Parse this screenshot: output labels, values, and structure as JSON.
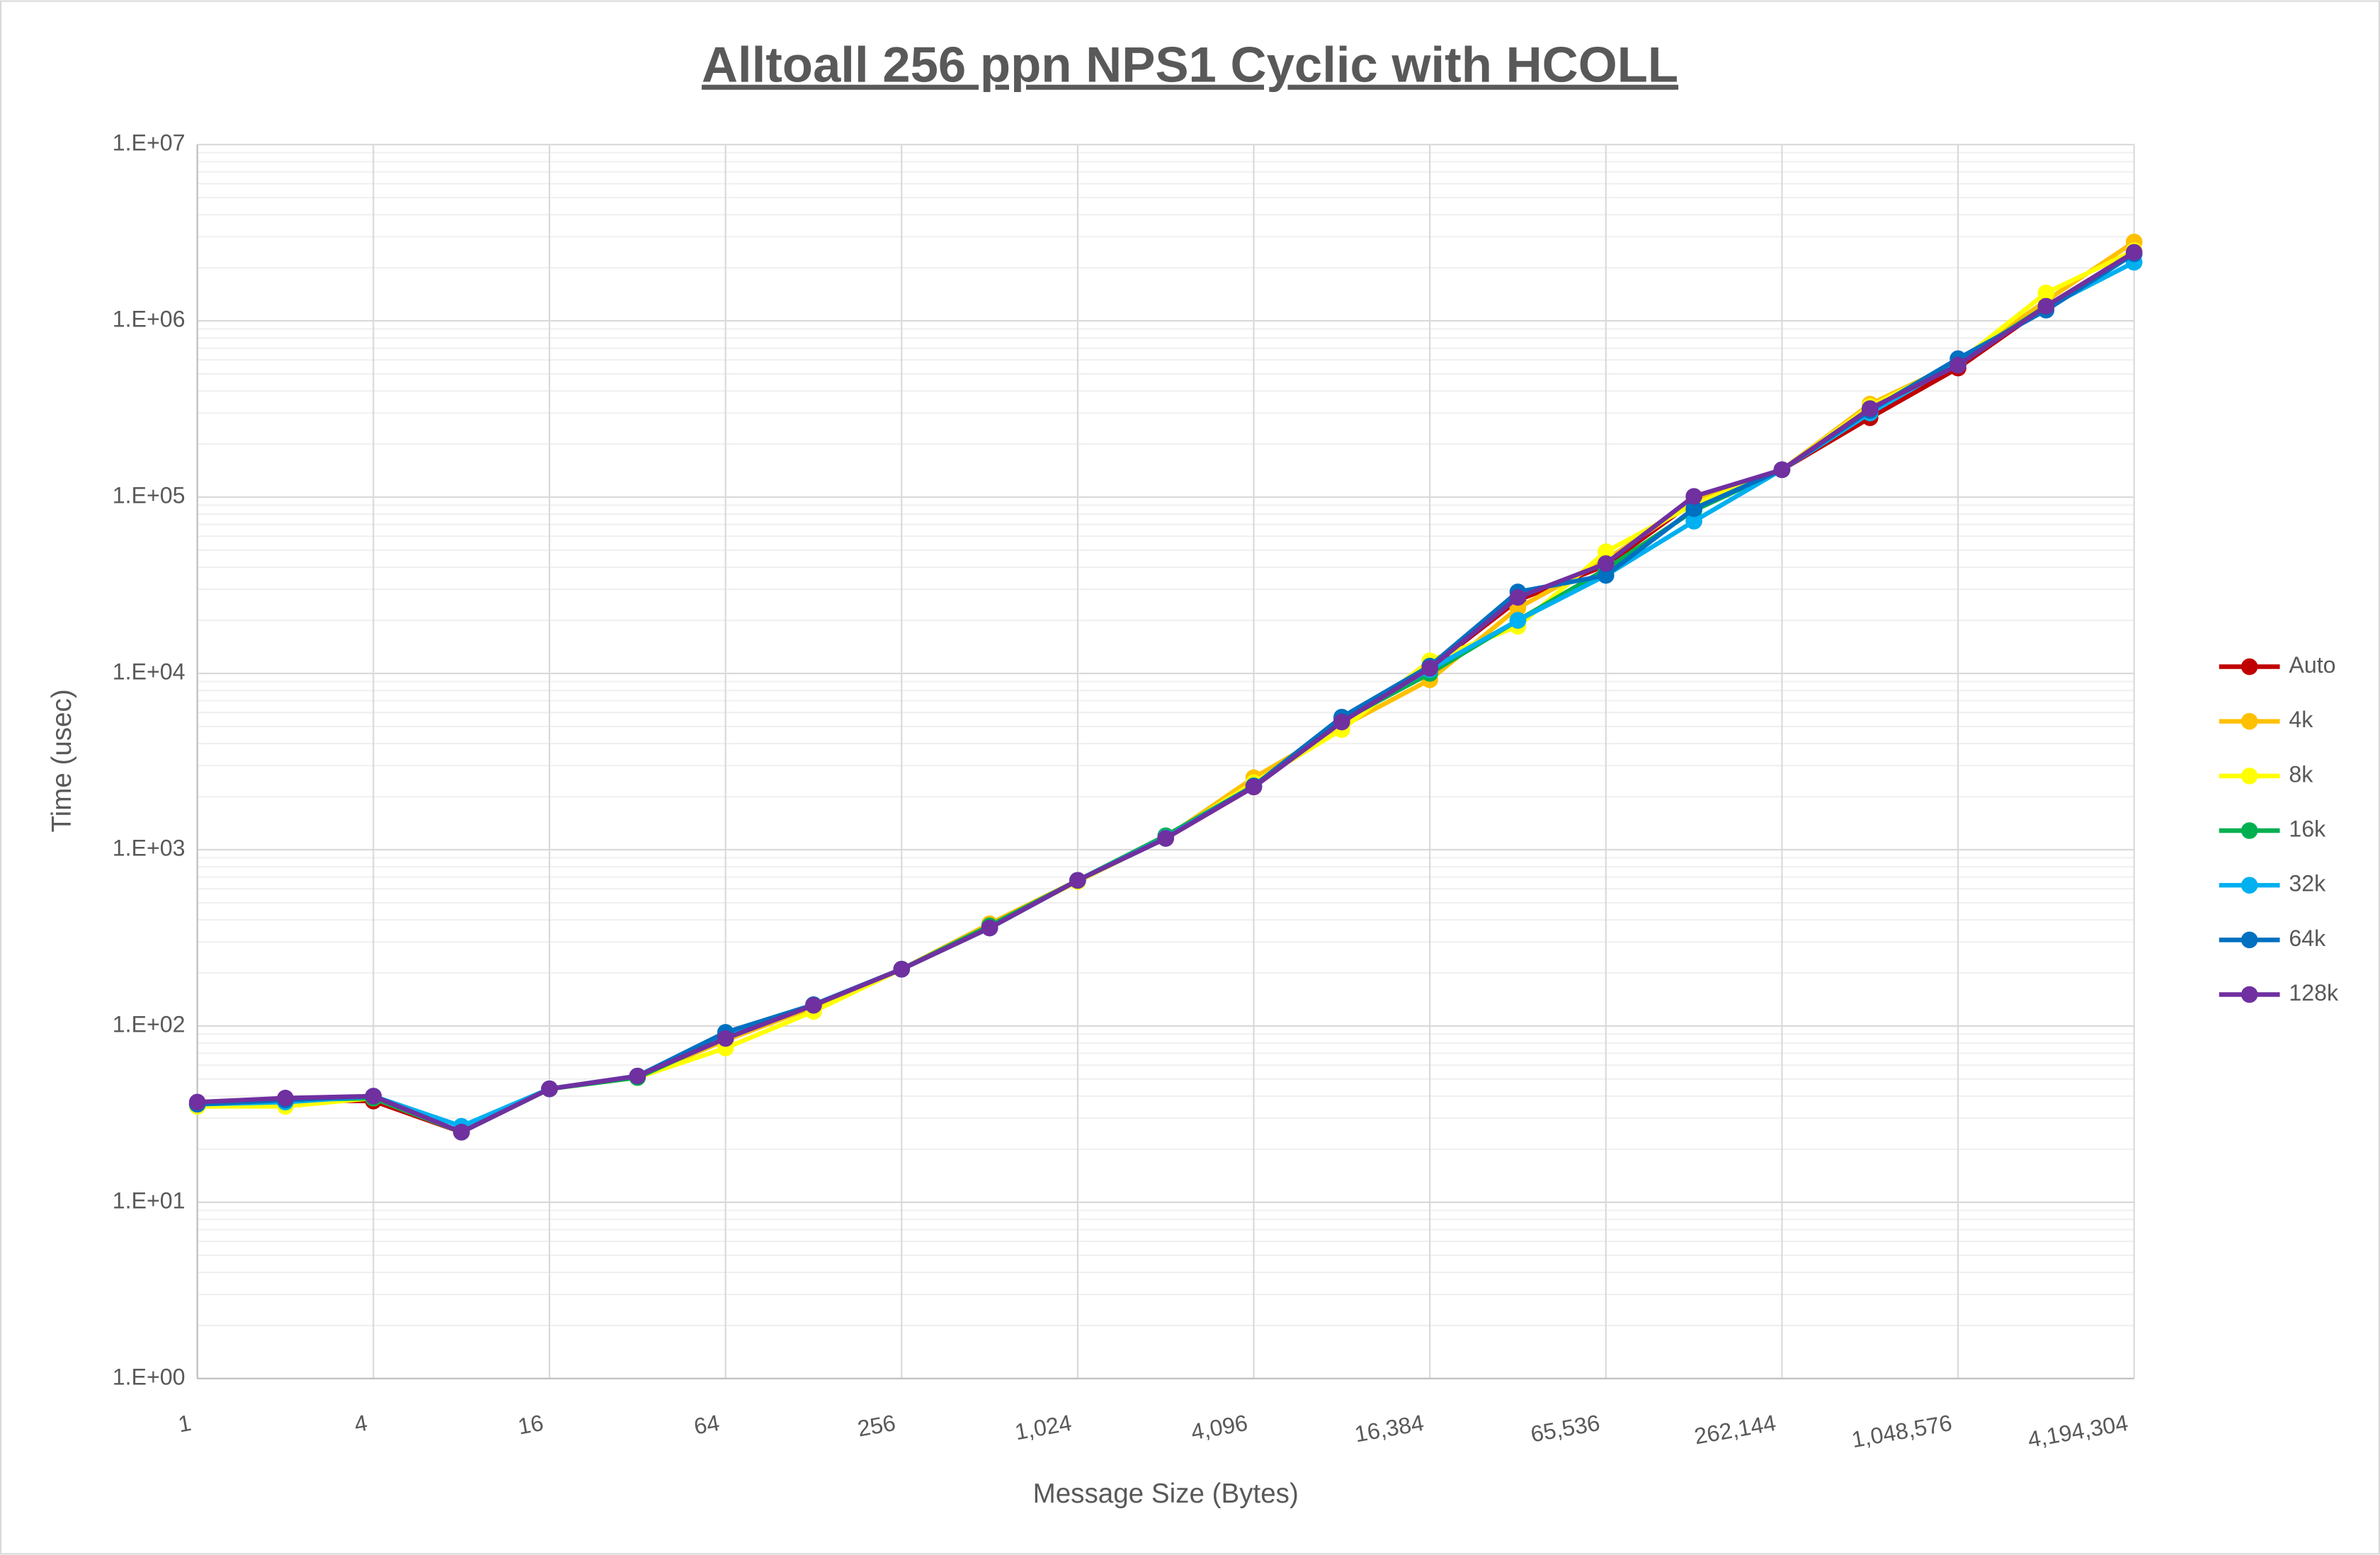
{
  "chart_data": {
    "type": "line",
    "title": "Alltoall 256 ppn NPS1 Cyclic with HCOLL",
    "x_label": "Message Size (Bytes)",
    "y_label": "Time (usec)",
    "xscale": "log",
    "yscale": "log",
    "grid": true,
    "minor_grid": true,
    "legend": "right",
    "x": [
      1,
      2,
      4,
      8,
      16,
      32,
      64,
      128,
      256,
      512,
      1024,
      2048,
      4096,
      8192,
      16384,
      32768,
      65536,
      131072,
      262144,
      524288,
      1048576,
      2097152,
      4194304
    ],
    "xlim": [
      1,
      4194304
    ],
    "xticks": [
      1,
      4,
      16,
      64,
      256,
      {
        "value": 1024,
        "label": "1,024"
      },
      {
        "value": 4096,
        "label": "4,096"
      },
      {
        "value": 16384,
        "label": "16,384"
      },
      {
        "value": 65536,
        "label": "65,536"
      },
      {
        "value": 262144,
        "label": "262,144"
      },
      {
        "value": 1048576,
        "label": "1,048,576"
      },
      {
        "value": 4194304,
        "label": "4,194,304"
      }
    ],
    "ylim": [
      1,
      10000000
    ],
    "yticks": [
      {
        "value": 1,
        "label": "1.E+00"
      },
      {
        "value": 10,
        "label": "1.E+01"
      },
      {
        "value": 100,
        "label": "1.E+02"
      },
      {
        "value": 1000,
        "label": "1.E+03"
      },
      {
        "value": 10000,
        "label": "1.E+04"
      },
      {
        "value": 100000,
        "label": "1.E+05"
      },
      {
        "value": 1000000,
        "label": "1.E+06"
      },
      {
        "value": 10000000,
        "label": "1.E+07"
      }
    ],
    "series": [
      {
        "name": "Auto",
        "color": "#c00000",
        "values": [
          36,
          38,
          37.5,
          25,
          44,
          52,
          85,
          131,
          210,
          360,
          670,
          1160,
          2270,
          5300,
          10700,
          26000,
          41000,
          95000,
          143000,
          282000,
          540000,
          1210000,
          2450000
        ]
      },
      {
        "name": "4k",
        "color": "#ffc000",
        "values": [
          36,
          38,
          39,
          25,
          44,
          51,
          83,
          128,
          210,
          380,
          670,
          1170,
          2560,
          5000,
          9200,
          23500,
          44000,
          95000,
          143000,
          337000,
          580000,
          1300000,
          2800000
        ]
      },
      {
        "name": "8k",
        "color": "#ffff00",
        "values": [
          35,
          35,
          39,
          25,
          44,
          51,
          75,
          121,
          210,
          370,
          660,
          1170,
          2400,
          4800,
          11800,
          18500,
          49000,
          91000,
          143000,
          327000,
          580000,
          1440000,
          2500000
        ]
      },
      {
        "name": "16k",
        "color": "#00b050",
        "values": [
          36,
          38,
          39,
          25,
          44,
          51,
          86,
          132,
          210,
          370,
          670,
          1200,
          2300,
          5400,
          10000,
          20000,
          39000,
          84000,
          143000,
          305000,
          580000,
          1210000,
          2400000
        ]
      },
      {
        "name": "32k",
        "color": "#00b0f0",
        "values": [
          36,
          37,
          40,
          27,
          44,
          52,
          88,
          132,
          210,
          360,
          670,
          1170,
          2300,
          5500,
          10500,
          20000,
          36000,
          73000,
          143000,
          300000,
          580000,
          1190000,
          2150000
        ]
      },
      {
        "name": "64k",
        "color": "#0070c0",
        "values": [
          36,
          38,
          40,
          25,
          44,
          52,
          92,
          132,
          210,
          360,
          670,
          1160,
          2300,
          5650,
          11000,
          29000,
          36000,
          86000,
          143000,
          310000,
          610000,
          1150000,
          2400000
        ]
      },
      {
        "name": "128k",
        "color": "#7030a0",
        "values": [
          37,
          39,
          40,
          25,
          44,
          52,
          85,
          131,
          210,
          360,
          670,
          1160,
          2270,
          5300,
          10700,
          27000,
          42000,
          101000,
          143000,
          318000,
          560000,
          1210000,
          2450000
        ]
      }
    ]
  }
}
